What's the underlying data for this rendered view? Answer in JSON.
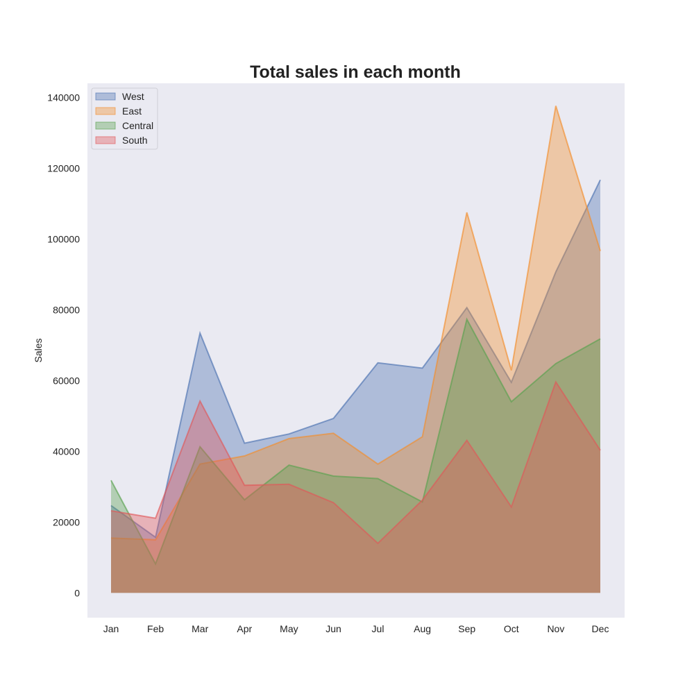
{
  "chart_data": {
    "type": "area",
    "title": "Total sales in each month",
    "xlabel": "",
    "ylabel": "Sales",
    "categories": [
      "Jan",
      "Feb",
      "Mar",
      "Apr",
      "May",
      "Jun",
      "Jul",
      "Aug",
      "Sep",
      "Oct",
      "Nov",
      "Dec"
    ],
    "ylim": [
      -7000,
      144000
    ],
    "yticks": [
      0,
      20000,
      40000,
      60000,
      80000,
      100000,
      120000,
      140000
    ],
    "ytick_labels": [
      "0",
      "20000",
      "40000",
      "60000",
      "80000",
      "100000",
      "120000",
      "140000"
    ],
    "grid": false,
    "legend_position": "top-left",
    "stacked": false,
    "series": [
      {
        "name": "West",
        "color": "#4c72b0",
        "values": [
          24700,
          15700,
          73400,
          42300,
          44900,
          49300,
          65000,
          63500,
          80600,
          59500,
          90700,
          116700
        ]
      },
      {
        "name": "East",
        "color": "#f28e2b",
        "values": [
          15500,
          15000,
          36400,
          38700,
          43600,
          45100,
          36400,
          44100,
          107500,
          62900,
          137600,
          96600
        ]
      },
      {
        "name": "Central",
        "color": "#59a14f",
        "values": [
          31800,
          8200,
          41300,
          26300,
          36100,
          33000,
          32300,
          25700,
          77300,
          54000,
          64800,
          71800
        ]
      },
      {
        "name": "South",
        "color": "#e15759",
        "values": [
          23200,
          21100,
          54200,
          30400,
          30700,
          25500,
          14000,
          26200,
          43100,
          24300,
          59600,
          40300
        ]
      }
    ]
  }
}
